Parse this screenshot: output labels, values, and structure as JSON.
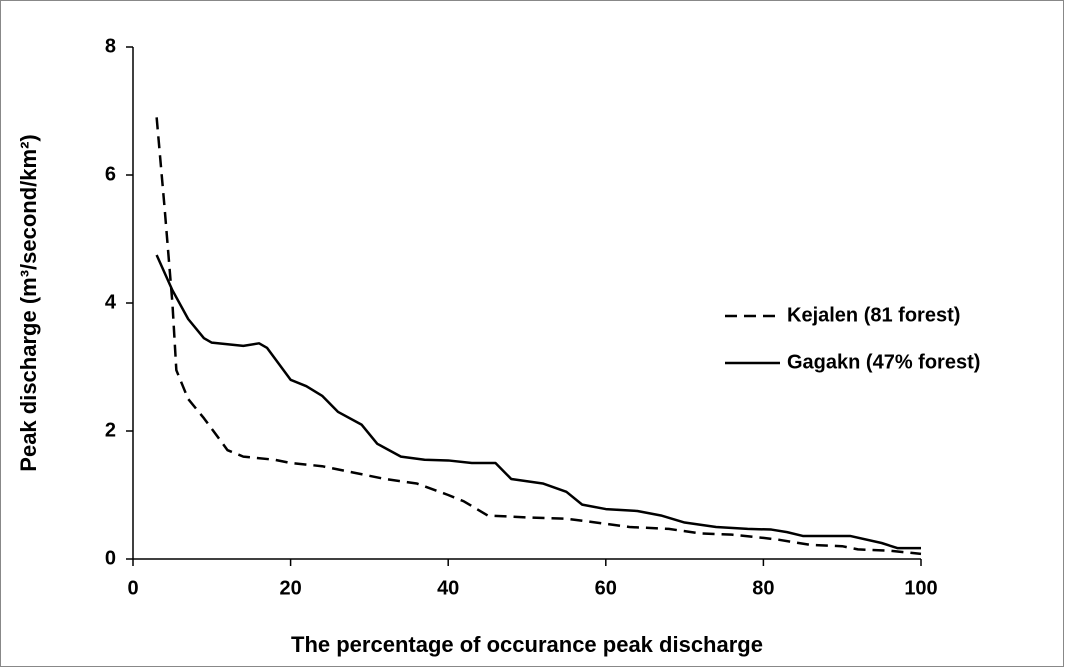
{
  "chart_data": {
    "type": "line",
    "xlabel": "The percentage of occurance peak discharge",
    "ylabel": "Peak discharge (m³/second/km²)",
    "xlim": [
      0,
      100
    ],
    "xticks": [
      0,
      20,
      40,
      60,
      80,
      100
    ],
    "ylim": [
      0,
      8
    ],
    "yticks": [
      0,
      2,
      4,
      6,
      8
    ],
    "legend": "right",
    "series": [
      {
        "name": "Kejalen (81 forest)",
        "color": "#000000",
        "style": "dashed",
        "x": [
          3,
          4,
          5,
          5.5,
          7,
          9,
          12,
          14,
          18,
          20,
          24,
          28,
          32,
          36,
          40,
          42,
          45,
          50,
          55,
          60,
          63,
          68,
          72,
          76,
          80,
          82,
          86,
          90,
          92,
          96,
          100
        ],
        "values": [
          6.9,
          5.5,
          4.0,
          2.95,
          2.5,
          2.2,
          1.7,
          1.6,
          1.55,
          1.5,
          1.45,
          1.35,
          1.25,
          1.18,
          1.0,
          0.9,
          0.68,
          0.65,
          0.63,
          0.55,
          0.5,
          0.47,
          0.4,
          0.38,
          0.33,
          0.3,
          0.22,
          0.2,
          0.15,
          0.13,
          0.08
        ]
      },
      {
        "name": "Gagakn (47% forest)",
        "color": "#000000",
        "style": "solid",
        "x": [
          3,
          5,
          7,
          9,
          10,
          14,
          16,
          17,
          20,
          22,
          24,
          26,
          29,
          31,
          34,
          37,
          40,
          43,
          46,
          48,
          52,
          55,
          57,
          60,
          64,
          67,
          70,
          74,
          78,
          81,
          83,
          85,
          91,
          95,
          97,
          100
        ],
        "values": [
          4.75,
          4.2,
          3.75,
          3.45,
          3.38,
          3.33,
          3.37,
          3.3,
          2.8,
          2.7,
          2.55,
          2.3,
          2.1,
          1.8,
          1.6,
          1.55,
          1.54,
          1.5,
          1.5,
          1.25,
          1.18,
          1.05,
          0.85,
          0.78,
          0.75,
          0.68,
          0.57,
          0.5,
          0.47,
          0.46,
          0.42,
          0.36,
          0.36,
          0.25,
          0.17,
          0.17
        ]
      }
    ]
  }
}
